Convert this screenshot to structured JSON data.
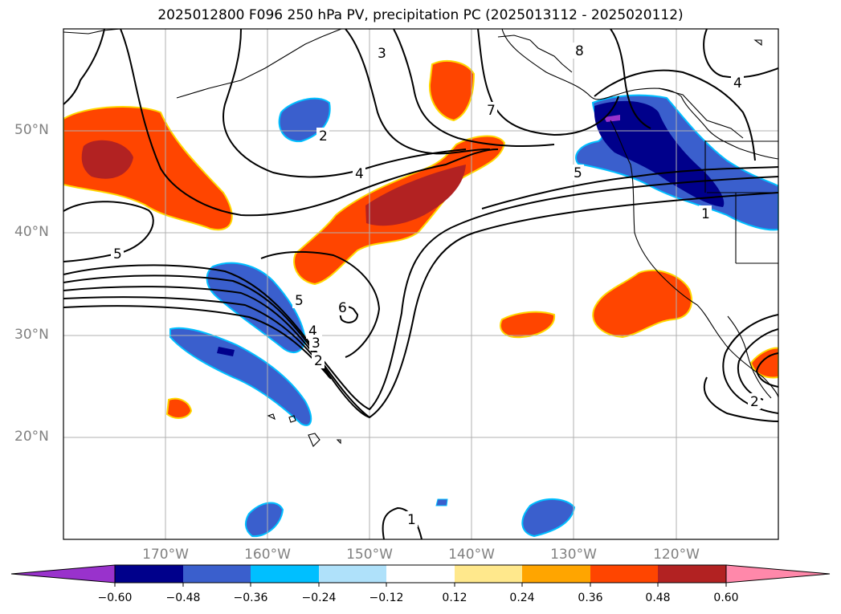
{
  "title": "2025012800 F096 250 hPa PV, precipitation PC (2025013112 - 2025020112)",
  "map": {
    "projection": "Plate Carrée",
    "lon_range": [
      -180,
      -110
    ],
    "lat_range": [
      10,
      60
    ],
    "gridlines": true,
    "lat_labels": [
      "50°N",
      "40°N",
      "30°N",
      "20°N"
    ],
    "lon_labels": [
      "170°W",
      "160°W",
      "150°W",
      "140°W",
      "130°W",
      "120°W"
    ],
    "contour_labels": [
      "3",
      "8",
      "4",
      "2",
      "7",
      "4",
      "5",
      "5",
      "1",
      "6",
      "5",
      "4",
      "3",
      "2",
      "1",
      "2"
    ],
    "colors": {
      "coastline": "#000000",
      "grid": "#b0b0b0"
    }
  },
  "colorbar": {
    "tick_labels": [
      "−0.60",
      "−0.48",
      "−0.36",
      "−0.24",
      "−0.12",
      "0.12",
      "0.24",
      "0.36",
      "0.48",
      "0.60"
    ],
    "colors": [
      "#9932cc",
      "#00008b",
      "#3a5fcd",
      "#00bfff",
      "#afe1fa",
      "#ffffff",
      "#ffe88c",
      "#ffa500",
      "#ff4500",
      "#b22222",
      "#ff88aa"
    ]
  }
}
